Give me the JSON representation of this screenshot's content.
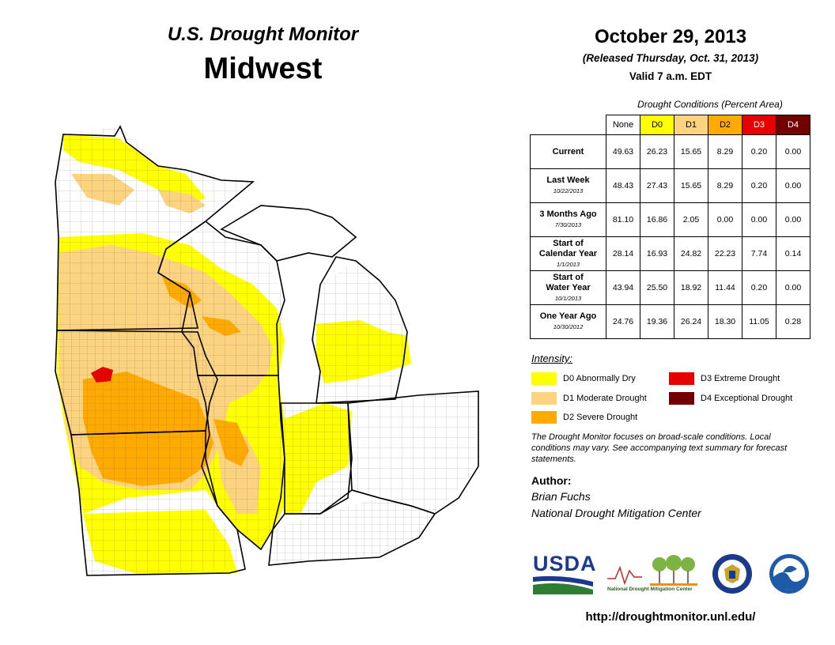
{
  "header": {
    "program": "U.S. Drought Monitor",
    "region": "Midwest",
    "date": "October 29, 2013",
    "released": "(Released Thursday, Oct. 31, 2013)",
    "valid": "Valid 7 a.m. EDT"
  },
  "conditions_table": {
    "caption": "Drought Conditions (Percent Area)",
    "columns": [
      "None",
      "D0",
      "D1",
      "D2",
      "D3",
      "D4"
    ],
    "rows": [
      {
        "label": "Current",
        "label2": "",
        "date": "",
        "values": [
          "49.63",
          "26.23",
          "15.65",
          "8.29",
          "0.20",
          "0.00"
        ]
      },
      {
        "label": "Last Week",
        "label2": "",
        "date": "10/22/2013",
        "values": [
          "48.43",
          "27.43",
          "15.65",
          "8.29",
          "0.20",
          "0.00"
        ]
      },
      {
        "label": "3 Months Ago",
        "label2": "",
        "date": "7/30/2013",
        "values": [
          "81.10",
          "16.86",
          "2.05",
          "0.00",
          "0.00",
          "0.00"
        ]
      },
      {
        "label": "Start of",
        "label2": "Calendar Year",
        "date": "1/1/2013",
        "values": [
          "28.14",
          "16.93",
          "24.82",
          "22.23",
          "7.74",
          "0.14"
        ]
      },
      {
        "label": "Start of",
        "label2": "Water Year",
        "date": "10/1/2013",
        "values": [
          "43.94",
          "25.50",
          "18.92",
          "11.44",
          "0.20",
          "0.00"
        ]
      },
      {
        "label": "One Year Ago",
        "label2": "",
        "date": "10/30/2012",
        "values": [
          "24.76",
          "19.36",
          "26.24",
          "18.30",
          "11.05",
          "0.28"
        ]
      }
    ]
  },
  "legend": {
    "title": "Intensity:",
    "items": [
      {
        "label": "D0 Abnormally Dry",
        "color": "#ffff00"
      },
      {
        "label": "D1 Moderate Drought",
        "color": "#fcd37f"
      },
      {
        "label": "D2 Severe Drought",
        "color": "#ffaa00"
      },
      {
        "label": "D3 Extreme Drought",
        "color": "#e60000"
      },
      {
        "label": "D4 Exceptional Drought",
        "color": "#730000"
      }
    ]
  },
  "note": "The Drought Monitor focuses on broad-scale conditions. Local conditions may vary. See accompanying text summary for forecast statements.",
  "author": {
    "label": "Author:",
    "name": "Brian Fuchs",
    "org": "National Drought Mitigation Center"
  },
  "logos": {
    "usda": "USDA",
    "ndmc": "National Drought Mitigation Center"
  },
  "url": "http://droughtmonitor.unl.edu/",
  "colors": {
    "D0": "#ffff00",
    "D1": "#fcd37f",
    "D2": "#ffaa00",
    "D3": "#e60000",
    "D4": "#730000",
    "state_border": "#000000",
    "county_border": "#555555"
  }
}
